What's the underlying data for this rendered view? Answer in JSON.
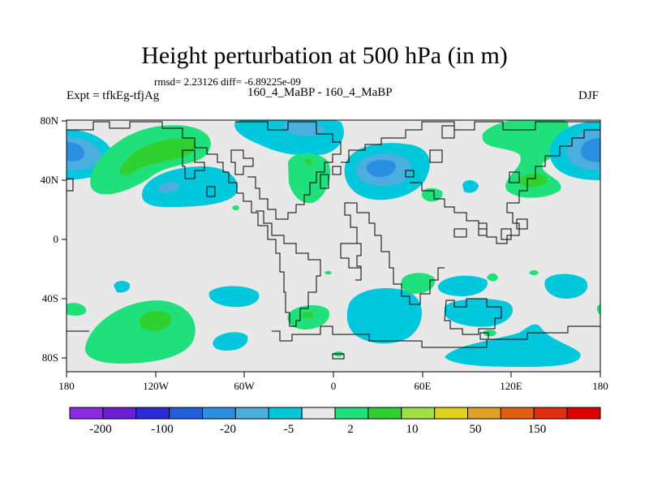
{
  "figure": {
    "title": "Height perturbation at 500 hPa (in m)",
    "stats": "rmsd= 2.23126 diff= -6.89225e-09",
    "left_label": "Expt = tfkEg-tfjAg",
    "center_label": "160_4_MaBP - 160_4_MaBP",
    "right_label": "DJF"
  },
  "axes": {
    "lon_ticks": [
      "180",
      "120W",
      "60W",
      "0",
      "60E",
      "120E",
      "180"
    ],
    "lat_ticks": [
      "80N",
      "40N",
      "0",
      "40S",
      "80S"
    ]
  },
  "colorbar": {
    "colors": [
      "#8a2be2",
      "#6a1fd6",
      "#2a2ad8",
      "#1f5fdc",
      "#2a8fe0",
      "#4aaede",
      "#00c8dc",
      "#e8e8e8",
      "#1fe07a",
      "#30d030",
      "#a0e040",
      "#e0d020",
      "#e0a020",
      "#e06010",
      "#e03010",
      "#e00000"
    ],
    "labels": [
      "-200",
      "-100",
      "-20",
      "-5",
      "2",
      "10",
      "50",
      "150"
    ]
  },
  "fill_colors": {
    "background": "#e8e8e8",
    "green": "#1fe07a",
    "light_green": "#30d030",
    "blue_light": "#00c8dc",
    "blue_mid": "#4aaede",
    "blue_dark": "#2a8fe0"
  }
}
